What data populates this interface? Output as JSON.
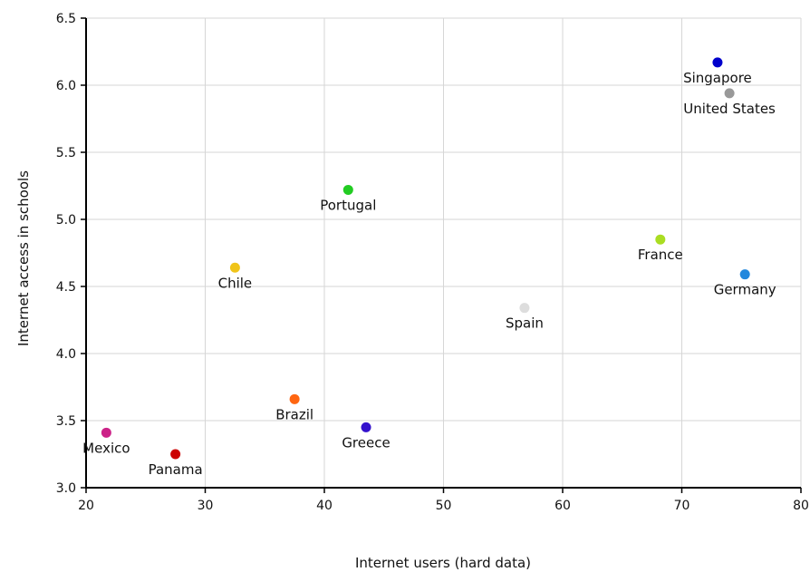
{
  "chart_data": {
    "type": "scatter",
    "title": "",
    "xlabel": "Internet users (hard data)",
    "ylabel": "Internet access in schools",
    "xlim": [
      20,
      80
    ],
    "ylim": [
      3.0,
      6.5
    ],
    "xticks": [
      "20",
      "30",
      "40",
      "50",
      "60",
      "70",
      "80"
    ],
    "yticks": [
      "3.0",
      "3.5",
      "4.0",
      "4.5",
      "5.0",
      "5.5",
      "6.0",
      "6.5"
    ],
    "grid": true,
    "legend": "none",
    "points": [
      {
        "label": "Singapore",
        "x": 73.0,
        "y": 6.17,
        "color": "#0000cc"
      },
      {
        "label": "United States",
        "x": 74.0,
        "y": 5.94,
        "color": "#999999"
      },
      {
        "label": "Portugal",
        "x": 42.0,
        "y": 5.22,
        "color": "#22cc22"
      },
      {
        "label": "France",
        "x": 68.2,
        "y": 4.85,
        "color": "#aadd22"
      },
      {
        "label": "Chile",
        "x": 32.5,
        "y": 4.64,
        "color": "#f0c419"
      },
      {
        "label": "Germany",
        "x": 75.3,
        "y": 4.59,
        "color": "#2288dd"
      },
      {
        "label": "Spain",
        "x": 56.8,
        "y": 4.34,
        "color": "#dddddd"
      },
      {
        "label": "Brazil",
        "x": 37.5,
        "y": 3.66,
        "color": "#ff6611"
      },
      {
        "label": "Greece",
        "x": 43.5,
        "y": 3.45,
        "color": "#3311cc"
      },
      {
        "label": "Mexico",
        "x": 21.7,
        "y": 3.41,
        "color": "#cc2288"
      },
      {
        "label": "Panama",
        "x": 27.5,
        "y": 3.25,
        "color": "#cc0000"
      }
    ]
  }
}
